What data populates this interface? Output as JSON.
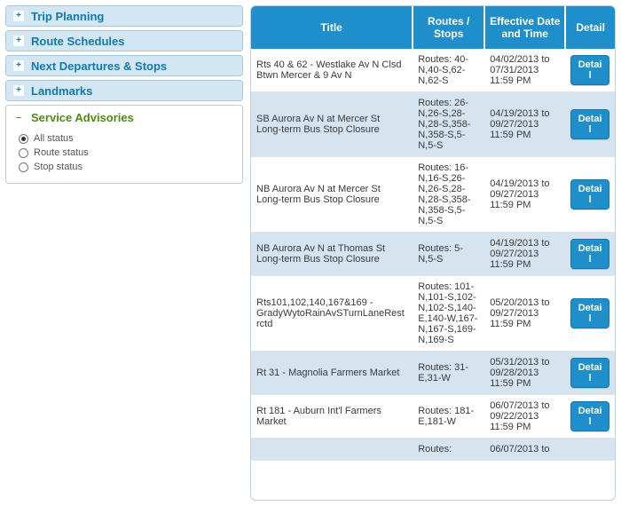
{
  "sidebar": {
    "items": [
      {
        "label": "Trip Planning"
      },
      {
        "label": "Route Schedules"
      },
      {
        "label": "Next Departures & Stops"
      },
      {
        "label": "Landmarks"
      }
    ],
    "active": {
      "label": "Service Advisories",
      "filters": [
        {
          "label": "All status",
          "checked": true
        },
        {
          "label": "Route status",
          "checked": false
        },
        {
          "label": "Stop status",
          "checked": false
        }
      ]
    }
  },
  "table": {
    "columns": {
      "title": "Title",
      "routes": "Routes / Stops",
      "date": "Effective Date and Time",
      "detail": "Detail"
    },
    "detail_label": "Detail",
    "rows": [
      {
        "title": "Rts 40 & 62 - Westlake Av N Clsd Btwn Mercer & 9 Av N",
        "routes": "Routes: 40-N,40-S,62-N,62-S",
        "date": "04/02/2013  to 07/31/2013 11:59 PM"
      },
      {
        "title": "SB Aurora Av N at Mercer St Long-term Bus Stop Closure",
        "routes": "Routes: 26-N,26-S,28-N,28-S,358-N,358-S,5-N,5-S",
        "date": "04/19/2013  to 09/27/2013 11:59 PM"
      },
      {
        "title": "NB Aurora Av N at Mercer St Long-term Bus Stop Closure",
        "routes": "Routes: 16-N,16-S,26-N,26-S,28-N,28-S,358-N,358-S,5-N,5-S",
        "date": "04/19/2013  to 09/27/2013 11:59 PM"
      },
      {
        "title": "NB Aurora Av N at Thomas St Long-term Bus Stop Closure",
        "routes": "Routes: 5-N,5-S",
        "date": "04/19/2013  to 09/27/2013 11:59 PM"
      },
      {
        "title": "Rts101,102,140,167&169 - GradyWytoRainAvSTurnLaneRestrctd",
        "routes": "Routes: 101-N,101-S,102-N,102-S,140-E,140-W,167-N,167-S,169-N,169-S",
        "date": "05/20/2013  to 09/27/2013 11:59 PM"
      },
      {
        "title": "Rt 31 - Magnolia Farmers Market",
        "routes": "Routes: 31-E,31-W",
        "date": "05/31/2013  to 09/28/2013 11:59 PM"
      },
      {
        "title": "Rt 181 - Auburn Int'l Farmers Market",
        "routes": "Routes: 181-E,181-W",
        "date": "06/07/2013  to 09/22/2013 11:59 PM"
      },
      {
        "title": "",
        "routes": "Routes:",
        "date": "06/07/2013  to"
      }
    ]
  },
  "colors": {
    "header_bg": "#1e8fcb",
    "nav_bg": "#d2e7f3",
    "active_text": "#4f8a10",
    "alt_row": "#d6e4ef"
  }
}
